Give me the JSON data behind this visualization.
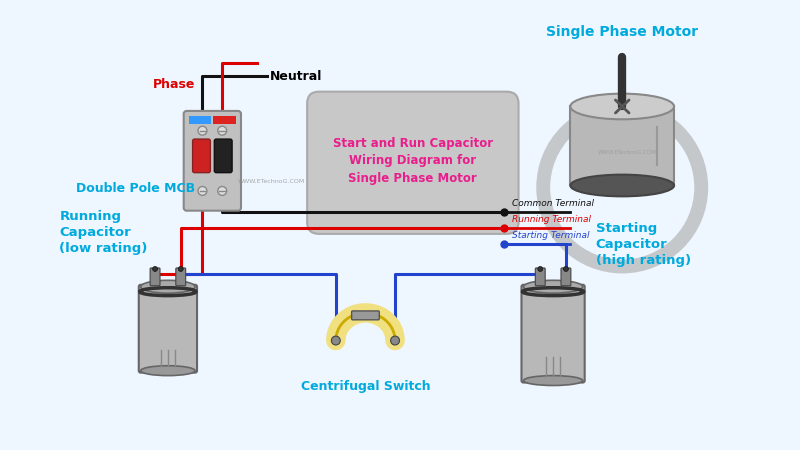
{
  "bg_color": "#eef6ff",
  "title": "Start and Run Capacitor\nWiring Diagram for\nSingle Phase Motor",
  "title_color": "#e91e8c",
  "title_bg": "#c8c8c8",
  "watermark": "WWW.ETechnoG.COM",
  "watermark2": "WWW.ETechnoG.COM",
  "labels": {
    "neutral": "Neutral",
    "phase": "Phase",
    "mcb": "Double Pole MCB",
    "motor": "Single Phase Motor",
    "run_cap": "Running\nCapacitor\n(low rating)",
    "start_cap": "Starting\nCapacitor\n(high rating)",
    "centrifugal": "Centrifugal Switch",
    "common_terminal": "Common Terminal",
    "running_terminal": "Running Terminal",
    "starting_terminal": "Starting Terminal"
  },
  "colors": {
    "black_wire": "#111111",
    "red_wire": "#dd0000",
    "blue_wire": "#2244cc",
    "gray": "#aaaaaa",
    "dark_gray": "#666666",
    "cyan_label": "#00aadd",
    "mcb_body": "#c0c0c0",
    "cap_body": "#b8b8b8",
    "yellow": "#f0e080",
    "white": "#ffffff"
  }
}
